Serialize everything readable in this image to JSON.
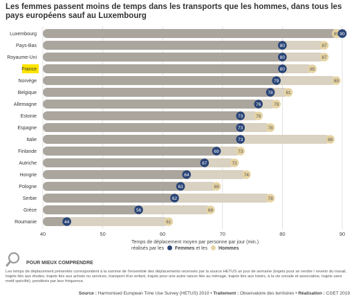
{
  "title": "Les femmes passent moins de temps dans les transports que les hommes, dans tous les pays européens sauf au Luxembourg",
  "axis_note": {
    "line1": "Temps de déplacement moyen par personne par jour (min.)",
    "line2_prefix": "réalisés par les",
    "and": "et les"
  },
  "understand": {
    "title": "POUR MIEUX COMPRENDRE",
    "text": "Les temps de déplacement présentés correspondent à la somme de l'ensemble des déplacements recensés par la source HETUS un jour de semaine (trajets pour se rendre / revenir du travail, trajets liés aux études, trajets liés aux achats ou services, transport d'un enfant, trajets pour une autre raison liée au ménage, trajets liés aux loisirs, à la vie sociale et associative, trajets sans motif spécifié), pondérés par leur fréquence."
  },
  "source": {
    "source_label": "Source :",
    "source_text": "Harmonised European Time Use Survey (HETUS) 2010",
    "treatment_label": "Traitement :",
    "treatment_text": "Observatoire des territoires",
    "realisation_label": "Réalisation :",
    "realisation_text": "CGET 2019"
  },
  "colors": {
    "men_bar": "#d9d1c1",
    "women_bar": "#aaa59d",
    "women_dot": "#2a4577",
    "men_dot": "#e6d3a3",
    "highlight": "#ffe500",
    "gridline": "#cccccc"
  },
  "chart_data": {
    "type": "bar",
    "orientation": "horizontal",
    "title": "Les femmes passent moins de temps dans les transports que les hommes, dans tous les pays européens sauf au Luxembourg",
    "xlabel": "Temps de déplacement moyen par personne par jour (min.)",
    "xlim": [
      40,
      90
    ],
    "xticks": [
      40,
      50,
      60,
      70,
      80,
      90
    ],
    "grid": true,
    "legend": "bottom",
    "highlighted_category": "France",
    "categories": [
      "Luxembourg",
      "Pays-Bas",
      "Royaume-Uni",
      "France",
      "Norvège",
      "Belgique",
      "Allemagne",
      "Estonie",
      "Espagne",
      "Italie",
      "Finlande",
      "Autriche",
      "Hongrie",
      "Pologne",
      "Serbie",
      "Grèce",
      "Roumanie"
    ],
    "series": [
      {
        "name": "Femmes",
        "values": [
          90,
          80,
          80,
          80,
          79,
          78,
          76,
          73,
          73,
          73,
          69,
          67,
          64,
          63,
          62,
          56,
          44
        ]
      },
      {
        "name": "Hommes",
        "values": [
          89,
          87,
          87,
          85,
          89,
          81,
          79,
          76,
          78,
          88,
          73,
          72,
          74,
          69,
          78,
          68,
          61
        ]
      }
    ]
  }
}
